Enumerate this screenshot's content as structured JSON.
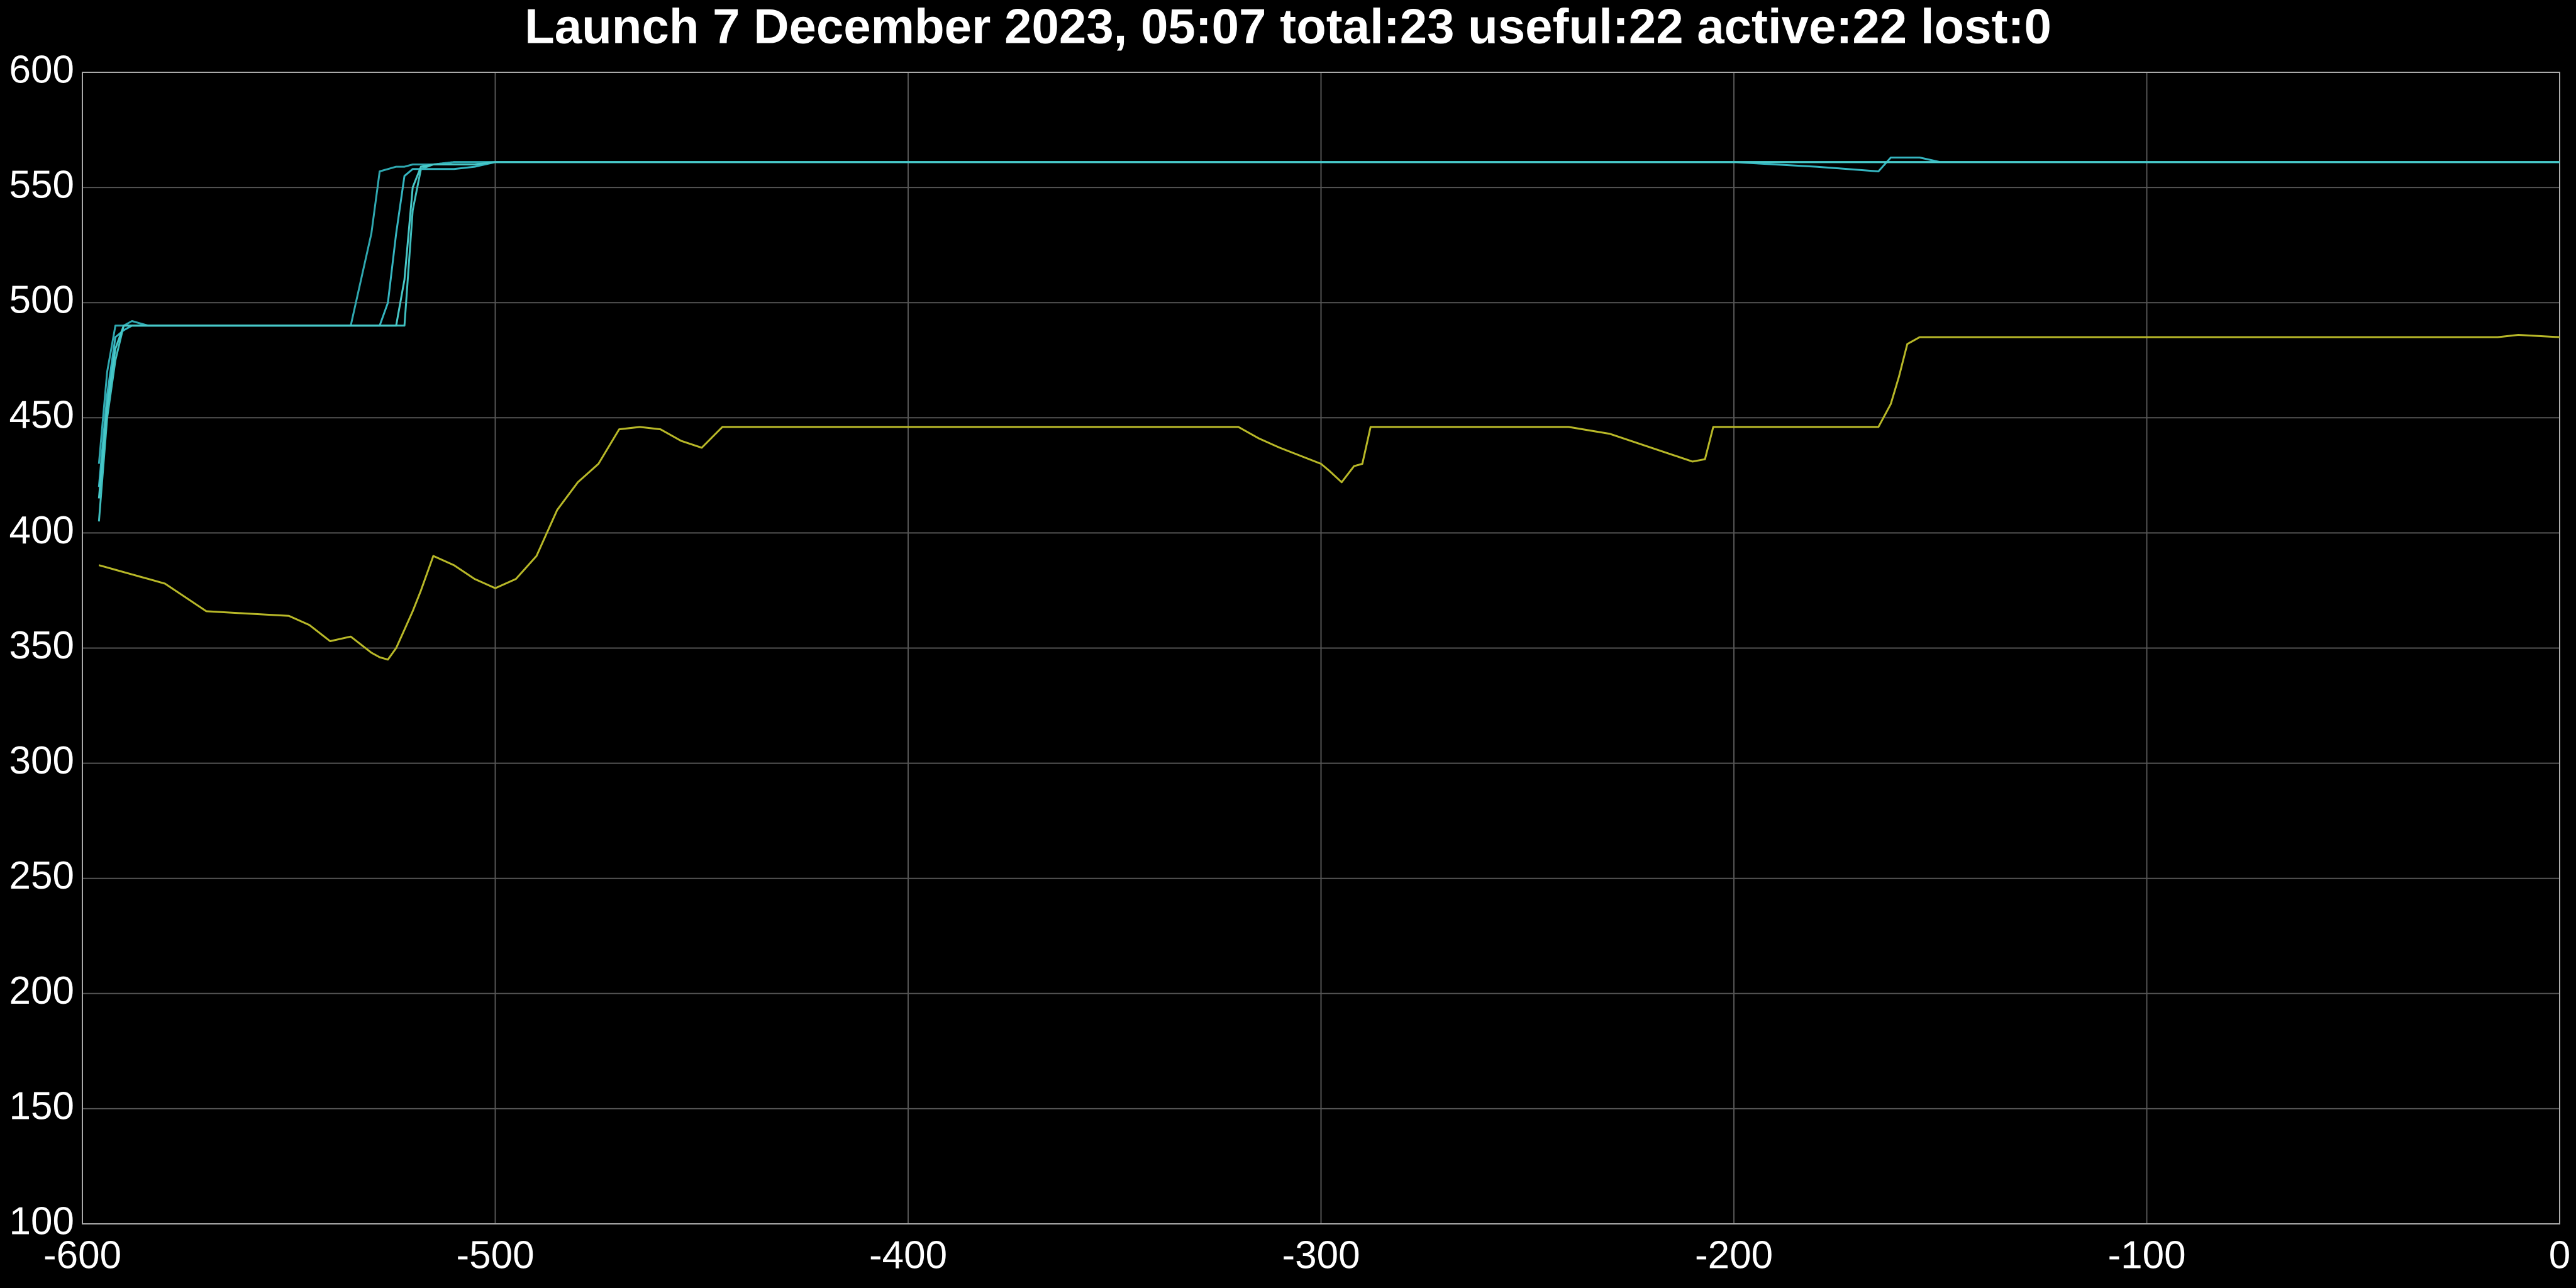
{
  "chart_data": {
    "type": "line",
    "title": "Launch 7 December 2023, 05:07 total:23 useful:22 active:22 lost:0",
    "x": [
      -596,
      -594,
      -592,
      -590,
      -588,
      -586,
      -584,
      -580,
      -575,
      -570,
      -560,
      -550,
      -545,
      -540,
      -535,
      -530,
      -528,
      -526,
      -524,
      -522,
      -520,
      -518,
      -515,
      -510,
      -505,
      -500,
      -495,
      -490,
      -485,
      -480,
      -475,
      -470,
      -465,
      -460,
      -455,
      -450,
      -445,
      -440,
      -400,
      -350,
      -320,
      -315,
      -310,
      -300,
      -298,
      -295,
      -292,
      -290,
      -288,
      -280,
      -250,
      -240,
      -230,
      -220,
      -215,
      -210,
      -207,
      -205,
      -200,
      -180,
      -165,
      -162,
      -160,
      -158,
      -155,
      -150,
      -100,
      -50,
      -15,
      -10,
      0
    ],
    "series": [
      {
        "color": "#b8b828",
        "values": [
          386,
          385,
          384,
          383,
          382,
          381,
          380,
          378,
          372,
          366,
          365,
          364,
          360,
          353,
          355,
          348,
          346,
          345,
          350,
          358,
          366,
          375,
          390,
          386,
          380,
          376,
          380,
          390,
          410,
          422,
          430,
          445,
          446,
          445,
          440,
          437,
          446,
          446,
          446,
          446,
          446,
          441,
          437,
          430,
          427,
          422,
          429,
          430,
          446,
          446,
          446,
          446,
          443,
          437,
          434,
          431,
          432,
          446,
          446,
          446,
          446,
          456,
          468,
          482,
          485,
          485,
          485,
          485,
          485,
          486,
          485
        ]
      },
      {
        "color": "#3fbfbf",
        "values": [
          405,
          450,
          475,
          490,
          490,
          490,
          490,
          490,
          490,
          490,
          490,
          490,
          490,
          490,
          490,
          490,
          490,
          490,
          490,
          490,
          540,
          558,
          560,
          561,
          561,
          561,
          561,
          561,
          561,
          561,
          561,
          561,
          561,
          561,
          561,
          561,
          561,
          561,
          561,
          561,
          561,
          561,
          561,
          561,
          561,
          561,
          561,
          561,
          561,
          561,
          561,
          561,
          561,
          561,
          561,
          561,
          561,
          561,
          561,
          561,
          561,
          561,
          561,
          561,
          561,
          561,
          561,
          561,
          561,
          561,
          561
        ]
      },
      {
        "color": "#2fa8b0",
        "values": [
          430,
          470,
          490,
          490,
          492,
          491,
          490,
          490,
          490,
          490,
          490,
          490,
          490,
          490,
          490,
          530,
          557,
          558,
          559,
          559,
          560,
          560,
          560,
          561,
          561,
          561,
          561,
          561,
          561,
          561,
          561,
          561,
          561,
          561,
          561,
          561,
          561,
          561,
          561,
          561,
          561,
          561,
          561,
          561,
          561,
          561,
          561,
          561,
          561,
          561,
          561,
          561,
          561,
          561,
          561,
          561,
          561,
          561,
          561,
          561,
          561,
          561,
          561,
          561,
          561,
          561,
          561,
          561,
          561,
          561,
          561
        ]
      },
      {
        "color": "#35b5c0",
        "values": [
          420,
          460,
          485,
          488,
          490,
          490,
          490,
          490,
          490,
          490,
          490,
          490,
          490,
          490,
          490,
          490,
          490,
          500,
          530,
          555,
          558,
          558,
          558,
          558,
          559,
          561,
          561,
          561,
          561,
          561,
          561,
          561,
          561,
          561,
          561,
          561,
          561,
          561,
          561,
          561,
          561,
          561,
          561,
          561,
          561,
          561,
          561,
          561,
          561,
          561,
          561,
          561,
          561,
          561,
          561,
          561,
          561,
          561,
          561,
          559,
          557,
          563,
          563,
          563,
          563,
          561,
          561,
          561,
          561,
          561,
          561
        ]
      },
      {
        "color": "#48c8c8",
        "values": [
          415,
          455,
          480,
          490,
          490,
          490,
          490,
          490,
          490,
          490,
          490,
          490,
          490,
          490,
          490,
          490,
          490,
          490,
          490,
          510,
          550,
          559,
          560,
          560,
          560,
          561,
          561,
          561,
          561,
          561,
          561,
          561,
          561,
          561,
          561,
          561,
          561,
          561,
          561,
          561,
          561,
          561,
          561,
          561,
          561,
          561,
          561,
          561,
          561,
          561,
          561,
          561,
          561,
          561,
          561,
          561,
          561,
          561,
          561,
          561,
          561,
          561,
          561,
          561,
          561,
          561,
          561,
          561,
          561,
          561,
          561
        ]
      }
    ],
    "xlim": [
      -600,
      0
    ],
    "ylim": [
      100,
      600
    ],
    "xticks": [
      -600,
      -500,
      -400,
      -300,
      -200,
      -100,
      0
    ],
    "yticks": [
      100,
      150,
      200,
      250,
      300,
      350,
      400,
      450,
      500,
      550,
      600
    ],
    "grid": true
  }
}
